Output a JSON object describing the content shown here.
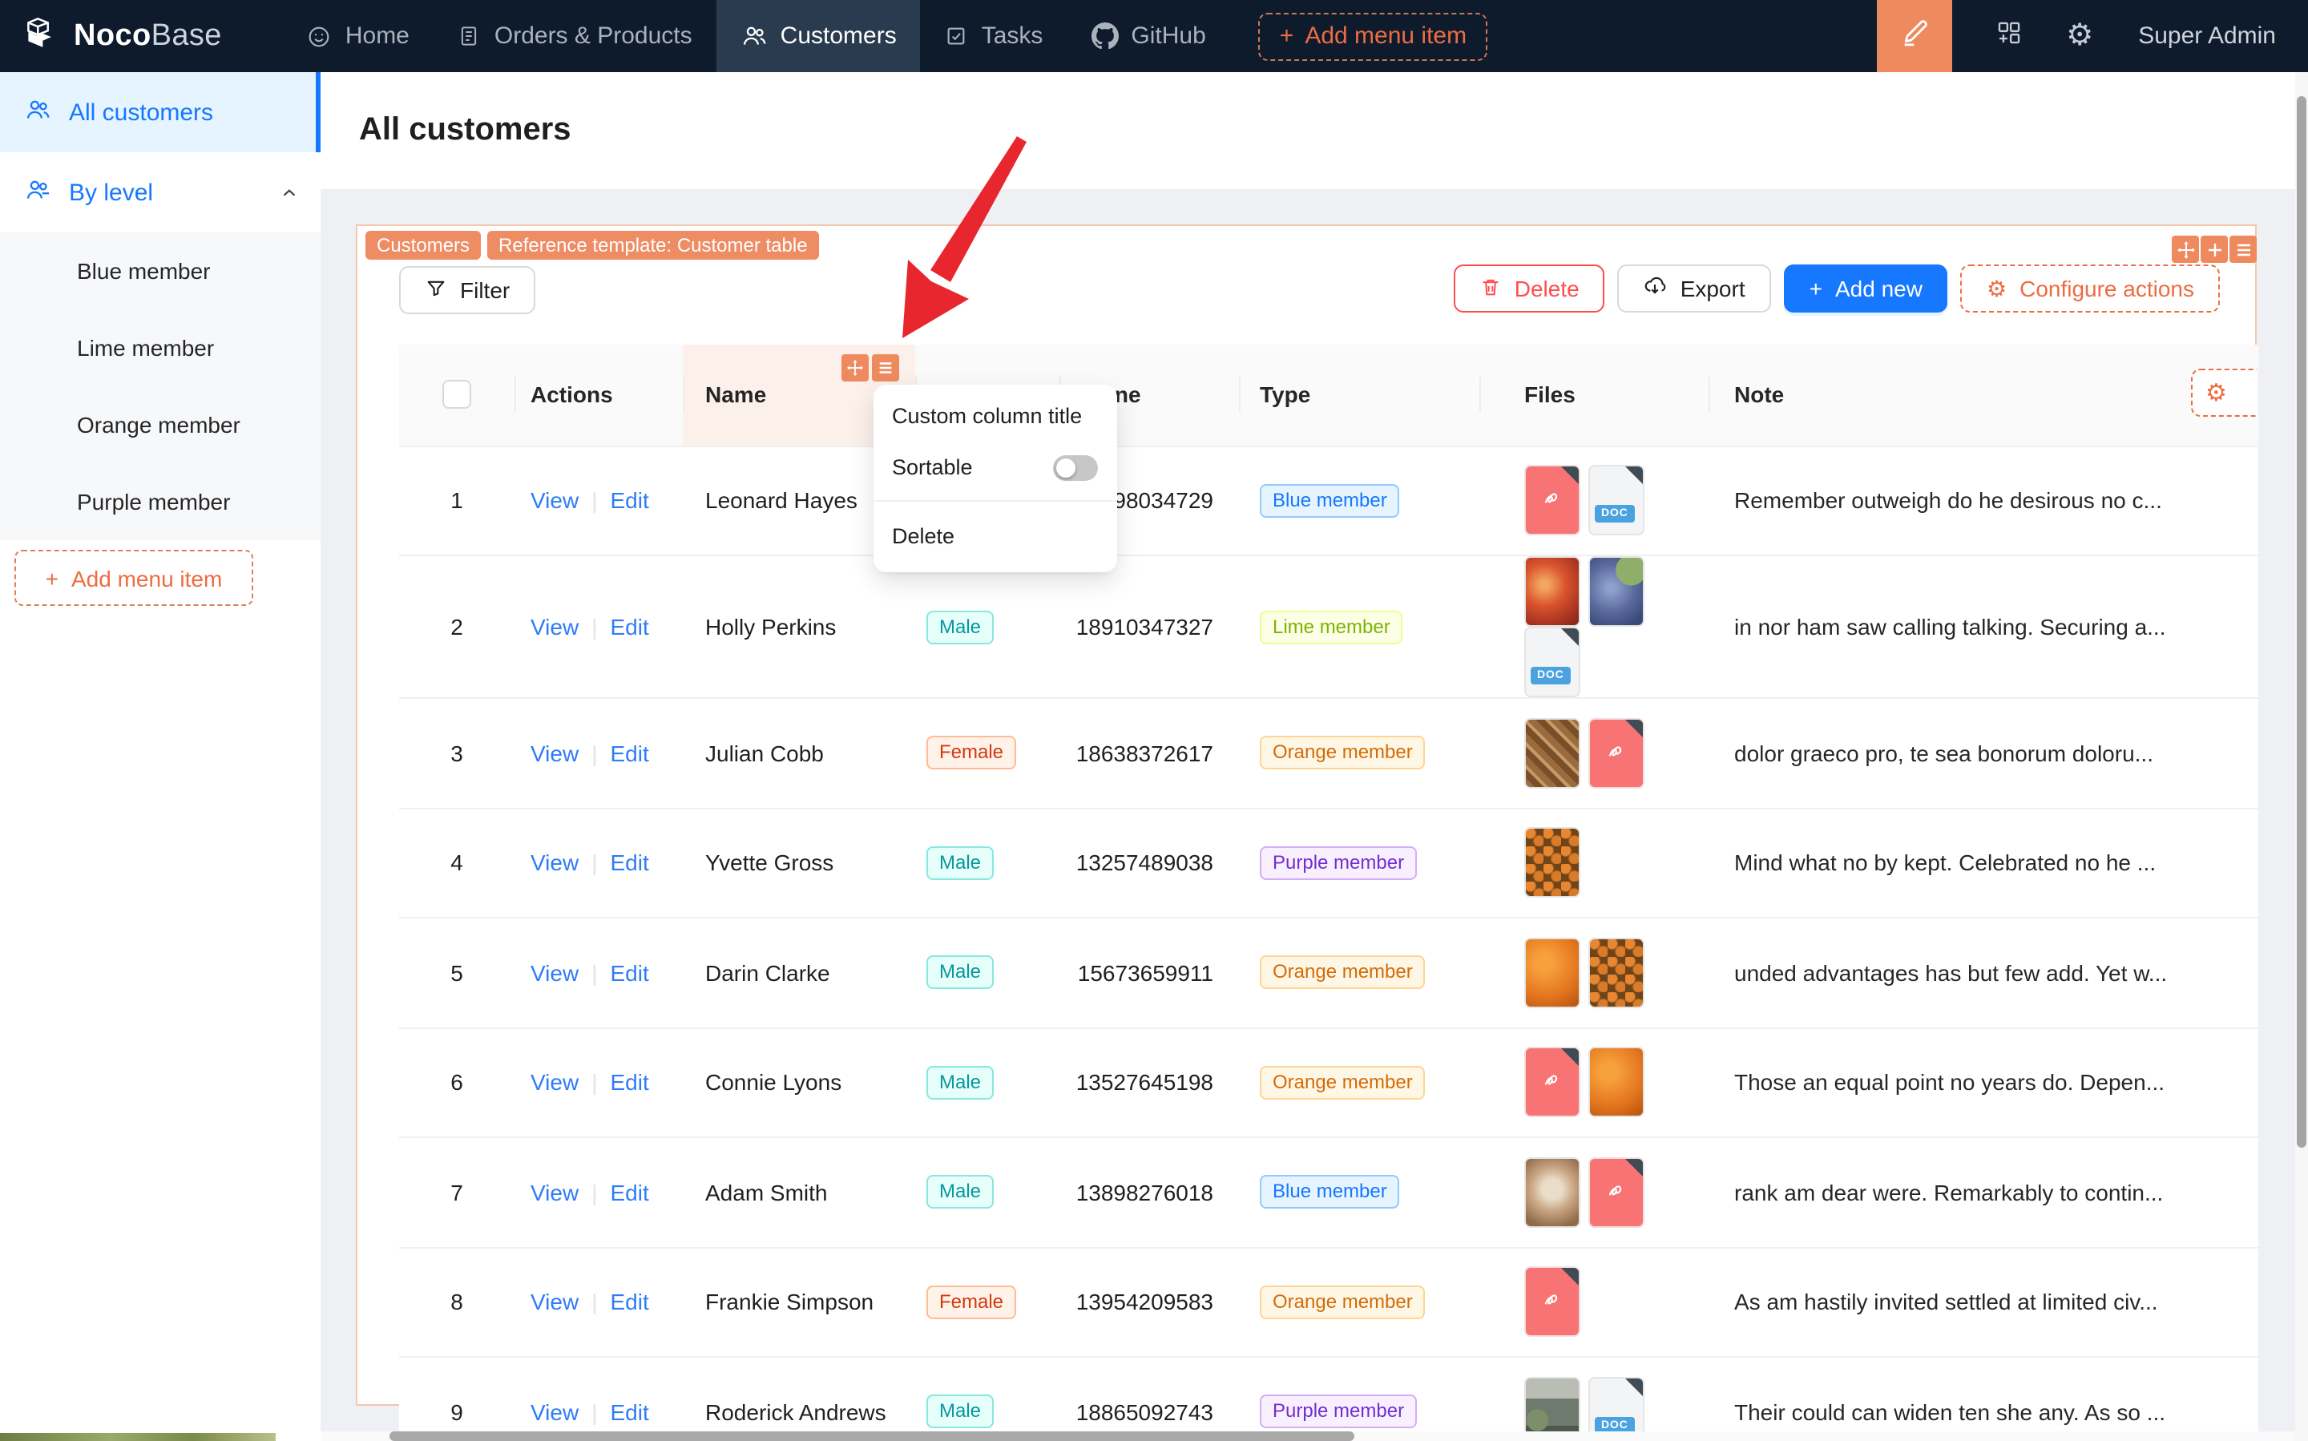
{
  "navbar": {
    "brand": {
      "bold": "Noco",
      "light": "Base"
    },
    "items": [
      {
        "label": "Home",
        "icon": "smiley-icon",
        "active": false
      },
      {
        "label": "Orders & Products",
        "icon": "document-icon",
        "active": false
      },
      {
        "label": "Customers",
        "icon": "people-icon",
        "active": true
      },
      {
        "label": "Tasks",
        "icon": "check-square-icon",
        "active": false
      },
      {
        "label": "GitHub",
        "icon": "github-icon",
        "active": false
      }
    ],
    "add_label": "Add menu item",
    "user": "Super Admin"
  },
  "sidebar": {
    "all_customers": "All customers",
    "by_level": "By level",
    "levels": [
      "Blue member",
      "Lime member",
      "Orange member",
      "Purple member"
    ],
    "add_label": "Add menu item"
  },
  "page": {
    "title": "All customers"
  },
  "block": {
    "tags": [
      "Customers",
      "Reference template: Customer table"
    ],
    "toolbar": {
      "filter": "Filter",
      "delete": "Delete",
      "export": "Export",
      "add_new": "Add new",
      "configure_actions": "Configure actions"
    }
  },
  "table": {
    "headers": {
      "actions": "Actions",
      "name": "Name",
      "phone": "Phone",
      "type": "Type",
      "files": "Files",
      "note": "Note"
    },
    "action_labels": {
      "view": "View",
      "edit": "Edit"
    },
    "doc_badge": "DOC",
    "rows": [
      {
        "num": 1,
        "name": "Leonard Hayes",
        "gender": null,
        "phone": "98034729",
        "type": "Blue member",
        "files": [
          {
            "kind": "pdf"
          },
          {
            "kind": "doc"
          }
        ],
        "note": "Remember outweigh do he desirous no c..."
      },
      {
        "num": 2,
        "name": "Holly Perkins",
        "gender": "Male",
        "phone": "18910347327",
        "type": "Lime member",
        "files": [
          {
            "kind": "img",
            "look": "pomegranate"
          },
          {
            "kind": "img",
            "look": "grapes"
          },
          {
            "kind": "doc"
          }
        ],
        "note": "in nor ham saw calling talking. Securing a..."
      },
      {
        "num": 3,
        "name": "Julian Cobb",
        "gender": "Female",
        "phone": "18638372617",
        "type": "Orange member",
        "files": [
          {
            "kind": "img",
            "look": "mosaic"
          },
          {
            "kind": "pdf"
          }
        ],
        "note": "dolor graeco pro, te sea bonorum doloru..."
      },
      {
        "num": 4,
        "name": "Yvette Gross",
        "gender": "Male",
        "phone": "13257489038",
        "type": "Purple member",
        "files": [
          {
            "kind": "img",
            "look": "crate"
          }
        ],
        "note": "Mind what no by kept. Celebrated no he ..."
      },
      {
        "num": 5,
        "name": "Darin Clarke",
        "gender": "Male",
        "phone": "15673659911",
        "type": "Orange member",
        "files": [
          {
            "kind": "img",
            "look": "oranges"
          },
          {
            "kind": "img",
            "look": "crate"
          }
        ],
        "note": "unded advantages has but few add. Yet w..."
      },
      {
        "num": 6,
        "name": "Connie Lyons",
        "gender": "Male",
        "phone": "13527645198",
        "type": "Orange member",
        "files": [
          {
            "kind": "pdf"
          },
          {
            "kind": "img",
            "look": "oranges"
          }
        ],
        "note": "Those an equal point no years do. Depen..."
      },
      {
        "num": 7,
        "name": "Adam Smith",
        "gender": "Male",
        "phone": "13898276018",
        "type": "Blue member",
        "files": [
          {
            "kind": "img",
            "look": "coffee"
          },
          {
            "kind": "pdf"
          }
        ],
        "note": "rank am dear were. Remarkably to contin..."
      },
      {
        "num": 8,
        "name": "Frankie Simpson",
        "gender": "Female",
        "phone": "13954209583",
        "type": "Orange member",
        "files": [
          {
            "kind": "pdf"
          }
        ],
        "note": "As am hastily invited settled at limited civ..."
      },
      {
        "num": 9,
        "name": "Roderick Andrews",
        "gender": "Male",
        "phone": "18865092743",
        "type": "Purple member",
        "files": [
          {
            "kind": "img",
            "look": "storefront"
          },
          {
            "kind": "doc"
          }
        ],
        "note": "Their could can widen ten she any. As so ..."
      }
    ]
  },
  "column_menu": {
    "custom_title_label": "Custom column title",
    "sortable_label": "Sortable",
    "sortable_on": false,
    "delete_label": "Delete"
  },
  "colors": {
    "accent_orange": "#ED6C41",
    "tag_bg": "#EE8C64",
    "primary_blue": "#1677ff",
    "danger_red": "#ff4d4f",
    "navbar_bg": "#0d1b2d",
    "arrow_red": "#e8262d"
  }
}
